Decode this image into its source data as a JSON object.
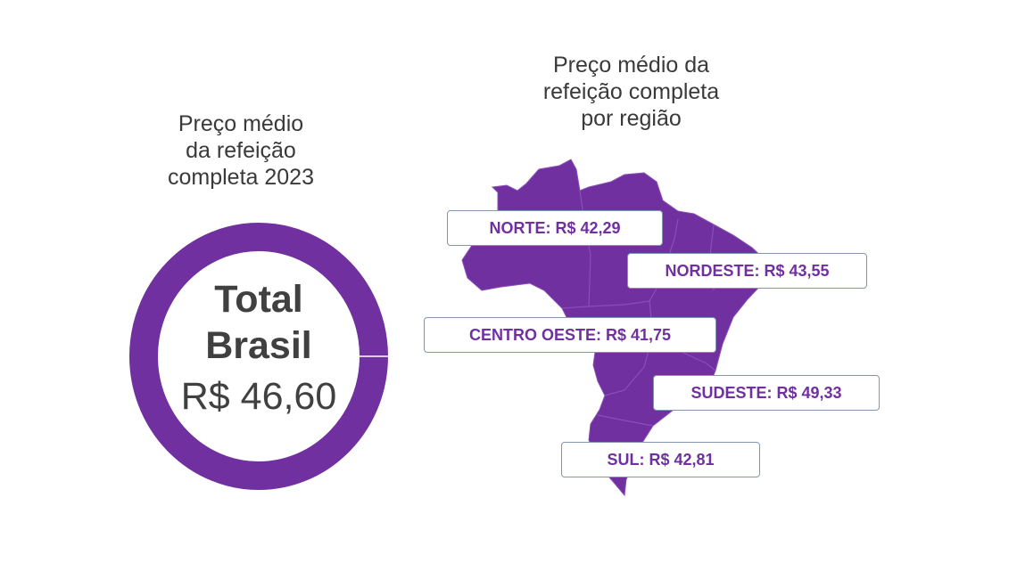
{
  "left_panel": {
    "title": "Preço médio\nda refeição\ncompleta 2023",
    "donut": {
      "line1": "Total",
      "line2": "Brasil",
      "value": "R$ 46,60",
      "ring_color": "#7030a0"
    }
  },
  "right_panel": {
    "title": "Preço médio da\nrefeição completa\npor região",
    "map_color": "#7030a0",
    "regions": [
      {
        "label": "NORTE: R$ 42,29"
      },
      {
        "label": "NORDESTE: R$ 43,55"
      },
      {
        "label": "CENTRO OESTE: R$ 41,75"
      },
      {
        "label": "SUDESTE: R$ 49,33"
      },
      {
        "label": "SUL: R$ 42,81"
      }
    ]
  }
}
